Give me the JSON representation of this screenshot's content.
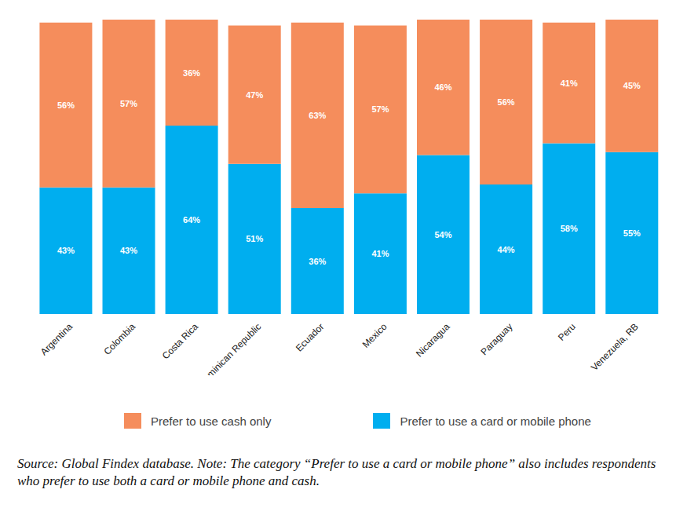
{
  "chart_data": {
    "type": "bar",
    "stacked": true,
    "data_labels": true,
    "tick_labels": "x",
    "legend": "bottom",
    "ylim": [
      0,
      100
    ],
    "categories": [
      "Argentina",
      "Colombia",
      "Costa Rica",
      "Dominican Republic",
      "Ecuador",
      "Mexico",
      "Nicaragua",
      "Paraguay",
      "Peru",
      "Venezuela, RB"
    ],
    "series": [
      {
        "name": "Prefer to use a card or mobile phone",
        "color": "#00aeef",
        "values": [
          43,
          43,
          64,
          51,
          36,
          41,
          54,
          44,
          58,
          55
        ],
        "value_labels": [
          "43%",
          "43%",
          "64%",
          "51%",
          "36%",
          "41%",
          "54%",
          "44%",
          "58%",
          "55%"
        ]
      },
      {
        "name": "Prefer to use cash only",
        "color": "#f58d5c",
        "values": [
          56,
          57,
          36,
          47,
          63,
          57,
          46,
          56,
          41,
          45
        ],
        "value_labels": [
          "56%",
          "57%",
          "36%",
          "47%",
          "63%",
          "57%",
          "46%",
          "56%",
          "41%",
          "45%"
        ]
      }
    ],
    "note": "Source: Global Findex database. Note: The category “Prefer to use a card or mobile phone” also includes respondents who prefer to use both a card or mobile phone and cash."
  }
}
